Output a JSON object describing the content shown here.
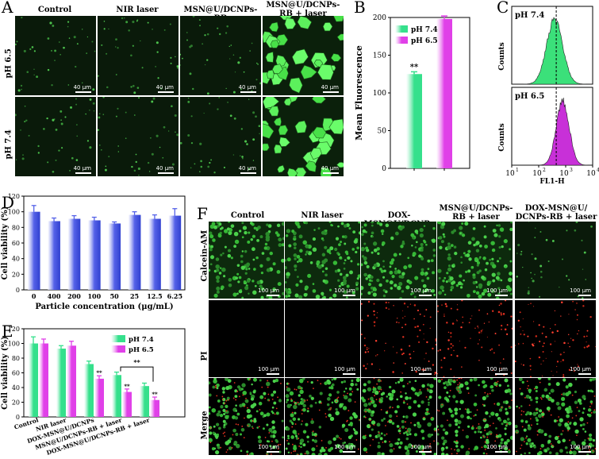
{
  "panelA": {
    "letter": "A",
    "columns": [
      "Control",
      "NIR laser",
      "MSN@U/DCNPs-RB",
      "MSN@U/DCNPs-RB + laser"
    ],
    "rows": [
      "pH 6.5",
      "pH 7.4"
    ],
    "scale": "40 μm"
  },
  "panelB": {
    "letter": "B",
    "sig": "**"
  },
  "panelC": {
    "letter": "C",
    "labels": [
      "pH 7.4",
      "pH 6.5"
    ],
    "ylabel": "Counts",
    "xlabel": "FL1-H",
    "ticks": [
      "10",
      "10",
      "10",
      "10"
    ],
    "exps": [
      "1",
      "2",
      "3"
    ]
  },
  "panelD": {
    "letter": "D"
  },
  "panelE": {
    "letter": "E",
    "sig": "**"
  },
  "panelF": {
    "letter": "F",
    "columns": [
      "Control",
      "NIR laser",
      "DOX-MSN@U/DCNPs",
      "MSN@U/DCNPs- RB + laser",
      "DOX-MSN@U/ DCNPs-RB + laser"
    ],
    "rows": [
      "Calcein-AM",
      "PI",
      "Merge"
    ],
    "scale": "100 μm"
  },
  "chart_data": [
    {
      "type": "bar",
      "panel": "B",
      "categories": [
        "pH 7.4",
        "pH 6.5"
      ],
      "values": [
        125,
        198
      ],
      "errors": [
        3,
        4
      ],
      "ylabel": "Mean Fluorescence",
      "ylim": [
        0,
        200
      ],
      "yticks": [
        0,
        50,
        100,
        150,
        200
      ],
      "legend": [
        "pH 7.4",
        "pH 6.5"
      ],
      "colors": [
        "#35e08c",
        "#e040e8"
      ]
    },
    {
      "type": "bar",
      "panel": "D",
      "categories": [
        "0",
        "400",
        "200",
        "100",
        "50",
        "25",
        "12.5",
        "6.25"
      ],
      "values": [
        100,
        88,
        91,
        89,
        85,
        96,
        91,
        95
      ],
      "errors": [
        8,
        4,
        4,
        4,
        2,
        4,
        5,
        9
      ],
      "xlabel": "Particle concentration (μg/mL)",
      "ylabel": "Cell viability (%)",
      "ylim": [
        0,
        120
      ],
      "yticks": [
        0,
        20,
        40,
        60,
        80,
        100,
        120
      ],
      "color": "#5562e8"
    },
    {
      "type": "bar",
      "panel": "E",
      "categories": [
        "Control",
        "NIR laser",
        "DOX-MSN@U/DCNPs",
        "MSN@U/DCNPs-RB + laser",
        "DOX-MSN@U/DCNPs-RB + laser"
      ],
      "series": [
        {
          "name": "pH 7.4",
          "values": [
            100,
            93,
            72,
            57,
            42
          ],
          "errors": [
            9,
            4,
            4,
            4,
            4
          ]
        },
        {
          "name": "pH 6.5",
          "values": [
            100,
            97,
            52,
            34,
            23
          ],
          "errors": [
            6,
            6,
            4,
            4,
            4
          ]
        }
      ],
      "ylabel": "Cell viability (%)",
      "ylim": [
        0,
        120
      ],
      "yticks": [
        0,
        20,
        40,
        60,
        80,
        100,
        120
      ],
      "colors": [
        "#35e08c",
        "#e040e8"
      ]
    }
  ]
}
